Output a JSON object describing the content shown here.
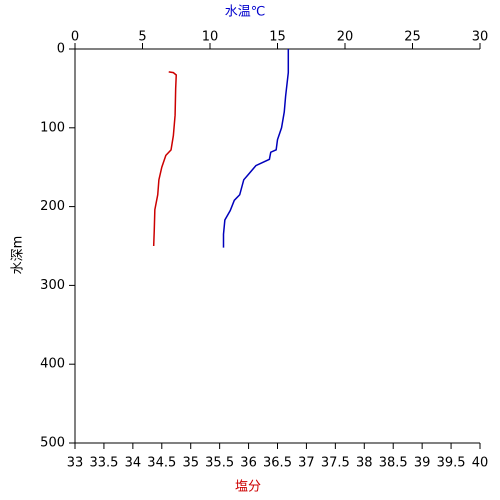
{
  "chart_data": {
    "type": "line",
    "xlabel": "塩分",
    "x2label": "水温℃",
    "ylabel": "水深m",
    "xlabel_color": "#cc0000",
    "x2label_color": "#0000cc",
    "xlim": [
      33,
      40
    ],
    "xticks": [
      33,
      33.5,
      34,
      34.5,
      35,
      35.5,
      36,
      36.5,
      37,
      37.5,
      38,
      38.5,
      39,
      39.5,
      40
    ],
    "x2lim": [
      0,
      30
    ],
    "x2ticks": [
      0,
      5,
      10,
      15,
      20,
      25,
      30
    ],
    "ylim": [
      0,
      500
    ],
    "yticks": [
      0,
      100,
      200,
      300,
      400,
      500
    ],
    "y_inverted": true,
    "series": [
      {
        "color": "#0000bb",
        "axis": "x2",
        "y": [
          0,
          30,
          60,
          80,
          100,
          115,
          128,
          131,
          140,
          148,
          160,
          166,
          185,
          192,
          205,
          217,
          235,
          252
        ],
        "values": [
          15.8,
          15.8,
          15.6,
          15.5,
          15.3,
          15.0,
          14.9,
          14.5,
          14.4,
          13.4,
          12.8,
          12.5,
          12.2,
          11.8,
          11.5,
          11.1,
          11.0,
          11.0
        ]
      },
      {
        "color": "#cc0000",
        "axis": "x",
        "y": [
          29,
          30,
          33,
          50,
          84,
          110,
          128,
          135,
          150,
          166,
          185,
          204,
          230,
          250
        ],
        "values": [
          34.62,
          34.7,
          34.75,
          34.74,
          34.73,
          34.7,
          34.66,
          34.57,
          34.5,
          34.45,
          34.43,
          34.38,
          34.37,
          34.36
        ]
      }
    ]
  }
}
